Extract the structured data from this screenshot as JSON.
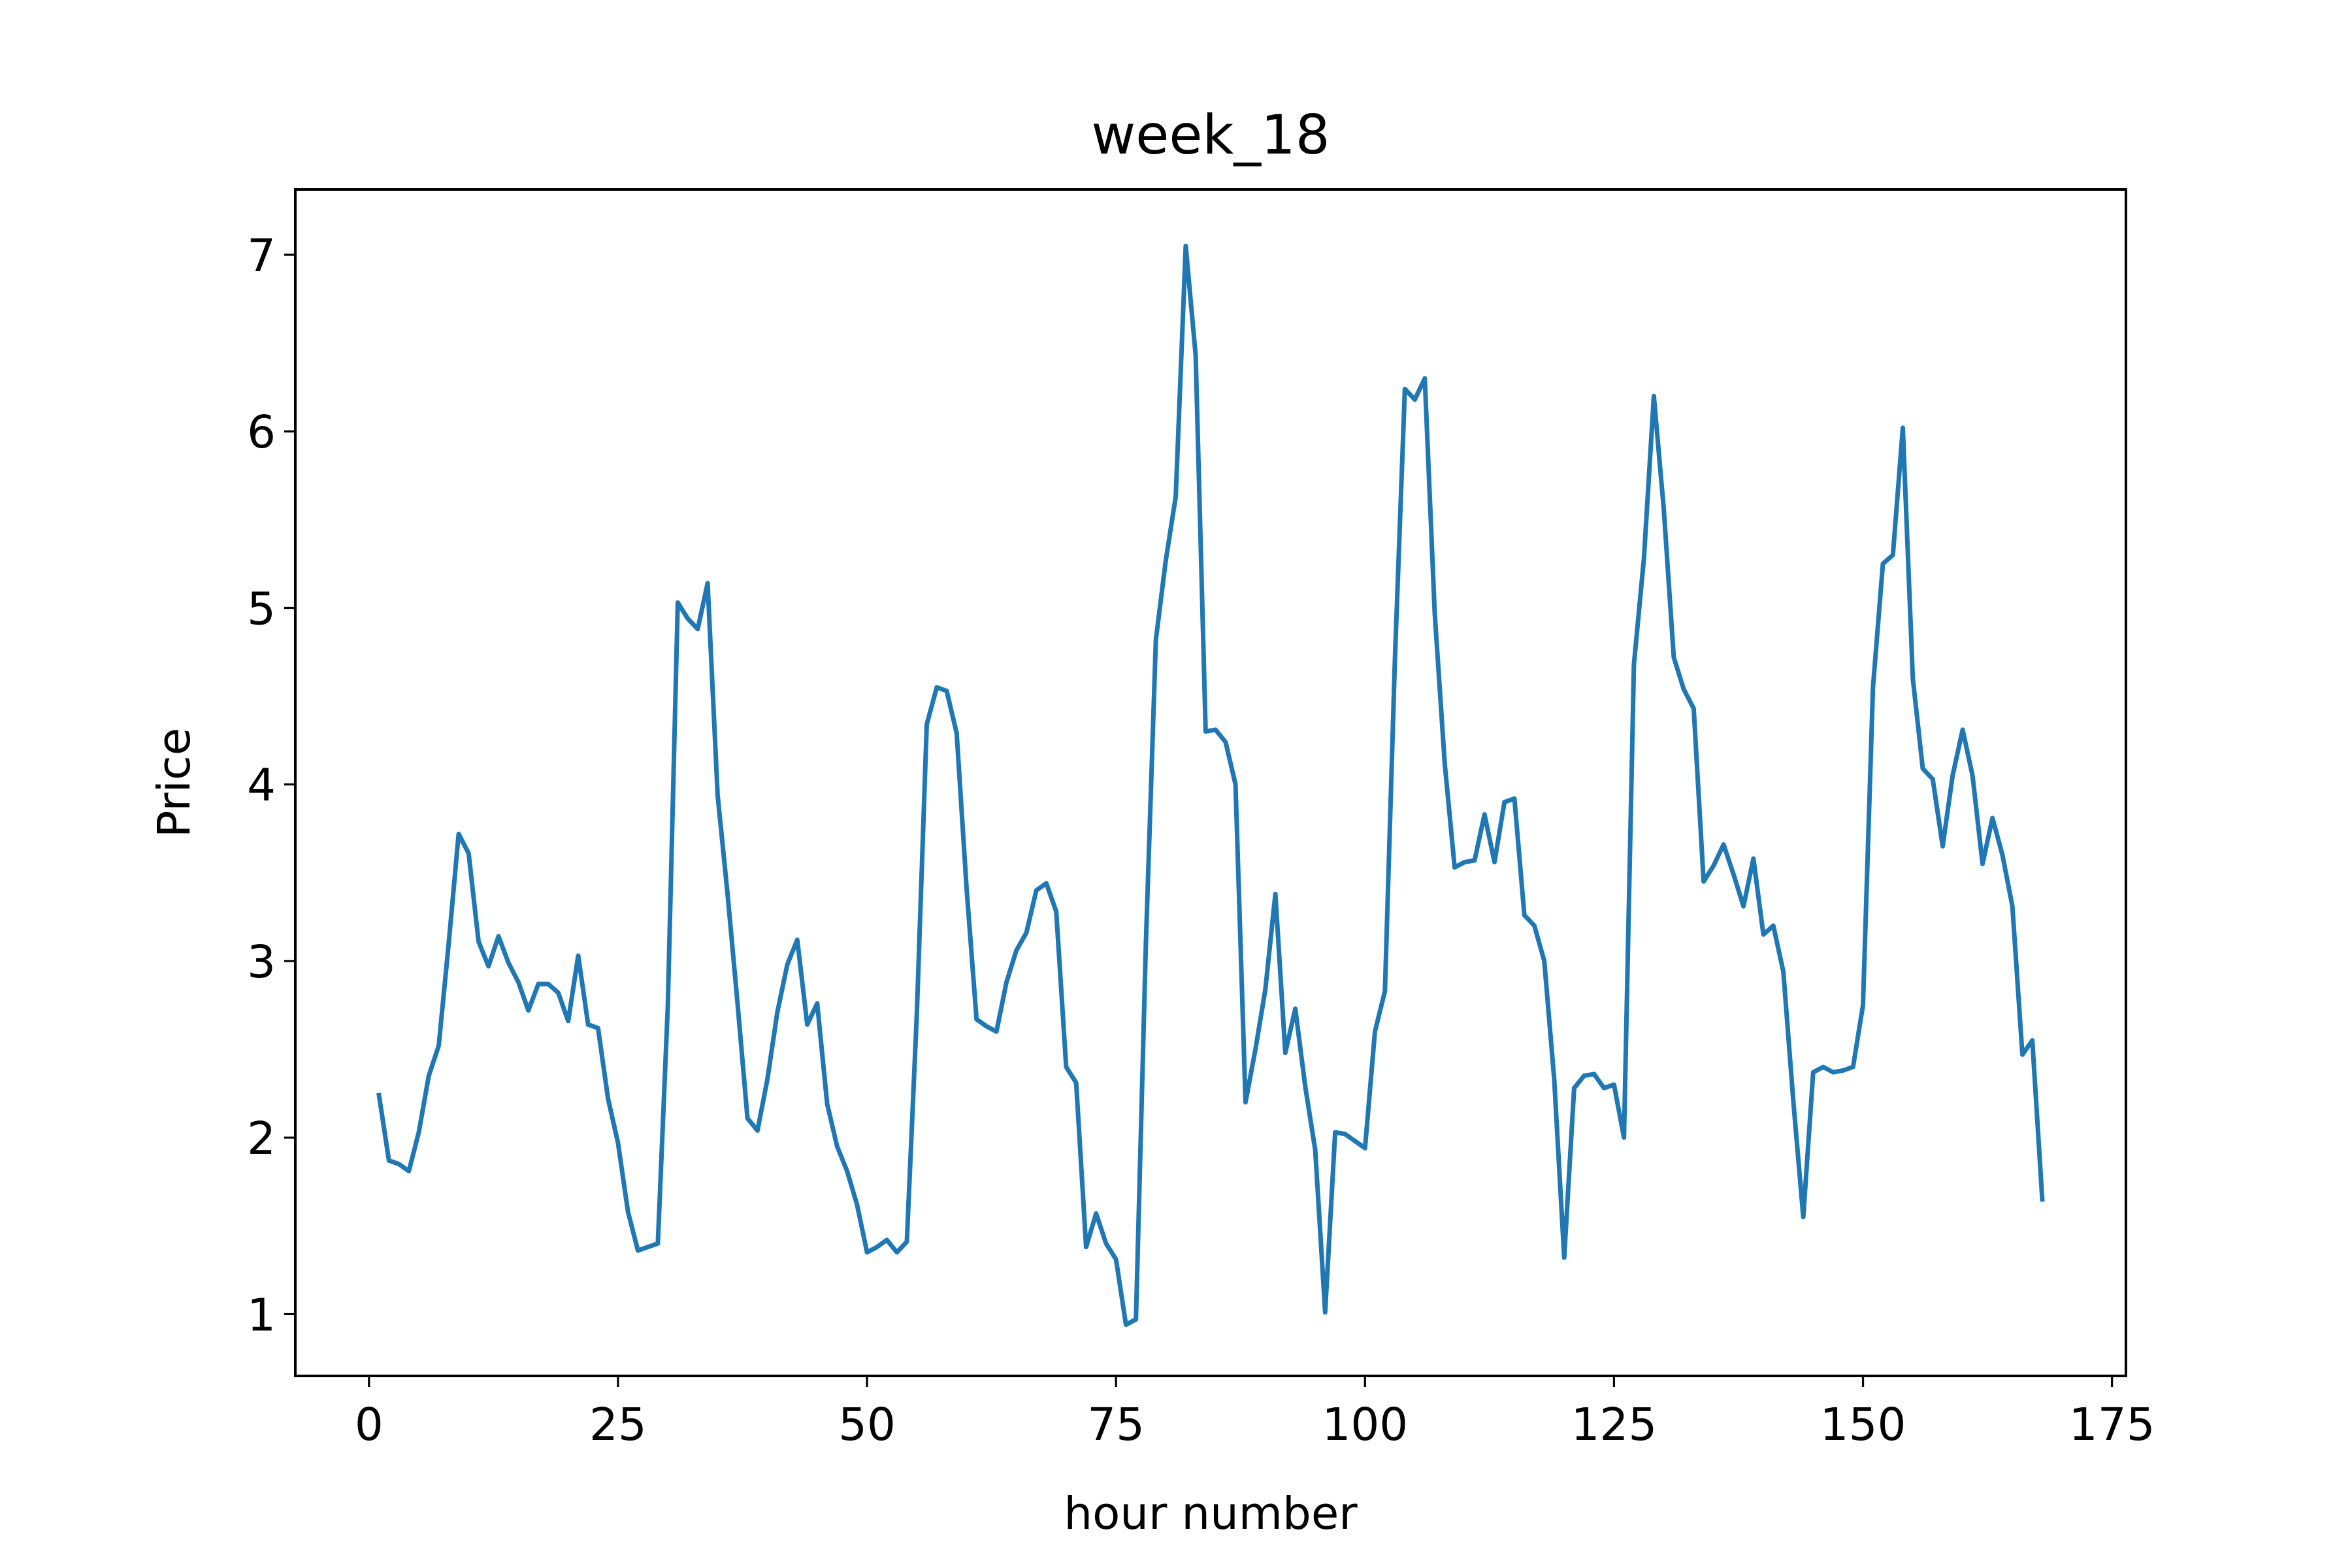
{
  "chart_data": {
    "type": "line",
    "title": "week_18",
    "xlabel": "hour number",
    "ylabel": "Price",
    "xlim": [
      -7.4,
      176.4
    ],
    "ylim": [
      0.65,
      7.37
    ],
    "xticks": [
      0,
      25,
      50,
      75,
      100,
      125,
      150,
      175
    ],
    "yticks": [
      1,
      2,
      3,
      4,
      5,
      6,
      7
    ],
    "grid": false,
    "legend": "none",
    "series": [
      {
        "color": "#1f77b4",
        "x": [
          1,
          2,
          3,
          4,
          5,
          6,
          7,
          8,
          9,
          10,
          11,
          12,
          13,
          14,
          15,
          16,
          17,
          18,
          19,
          20,
          21,
          22,
          23,
          24,
          25,
          26,
          27,
          28,
          29,
          30,
          31,
          32,
          33,
          34,
          35,
          36,
          37,
          38,
          39,
          40,
          41,
          42,
          43,
          44,
          45,
          46,
          47,
          48,
          49,
          50,
          51,
          52,
          53,
          54,
          55,
          56,
          57,
          58,
          59,
          60,
          61,
          62,
          63,
          64,
          65,
          66,
          67,
          68,
          69,
          70,
          71,
          72,
          73,
          74,
          75,
          76,
          77,
          78,
          79,
          80,
          81,
          82,
          83,
          84,
          85,
          86,
          87,
          88,
          89,
          90,
          91,
          92,
          93,
          94,
          95,
          96,
          97,
          98,
          99,
          100,
          101,
          102,
          103,
          104,
          105,
          106,
          107,
          108,
          109,
          110,
          111,
          112,
          113,
          114,
          115,
          116,
          117,
          118,
          119,
          120,
          121,
          122,
          123,
          124,
          125,
          126,
          127,
          128,
          129,
          130,
          131,
          132,
          133,
          134,
          135,
          136,
          137,
          138,
          139,
          140,
          141,
          142,
          143,
          144,
          145,
          146,
          147,
          148,
          149,
          150,
          151,
          152,
          153,
          154,
          155,
          156,
          157,
          158,
          159,
          160,
          161,
          162,
          163,
          164,
          165,
          166,
          167,
          168
        ],
        "y": [
          2.24,
          1.87,
          1.85,
          1.81,
          2.03,
          2.35,
          2.52,
          3.1,
          3.72,
          3.61,
          3.11,
          2.97,
          3.14,
          2.99,
          2.88,
          2.72,
          2.87,
          2.87,
          2.82,
          2.66,
          3.03,
          2.64,
          2.62,
          2.22,
          1.97,
          1.58,
          1.36,
          1.38,
          1.4,
          2.75,
          5.03,
          4.94,
          4.88,
          5.14,
          3.94,
          3.38,
          2.76,
          2.11,
          2.04,
          2.33,
          2.71,
          2.98,
          3.12,
          2.64,
          2.76,
          2.19,
          1.95,
          1.81,
          1.62,
          1.35,
          1.38,
          1.42,
          1.35,
          1.41,
          2.7,
          4.34,
          4.55,
          4.53,
          4.29,
          3.41,
          2.67,
          2.63,
          2.6,
          2.88,
          3.06,
          3.16,
          3.4,
          3.44,
          3.28,
          2.4,
          2.31,
          1.38,
          1.57,
          1.4,
          1.31,
          0.94,
          0.97,
          3.1,
          4.82,
          5.27,
          5.63,
          7.05,
          6.43,
          4.3,
          4.31,
          4.24,
          4.0,
          2.2,
          2.5,
          2.84,
          3.38,
          2.48,
          2.73,
          2.29,
          1.93,
          1.01,
          2.03,
          2.02,
          1.98,
          1.94,
          2.6,
          2.83,
          4.7,
          6.24,
          6.18,
          6.3,
          4.97,
          4.12,
          3.53,
          3.56,
          3.57,
          3.83,
          3.56,
          3.9,
          3.92,
          3.26,
          3.2,
          3.0,
          2.33,
          1.32,
          2.28,
          2.35,
          2.36,
          2.28,
          2.3,
          2.0,
          4.68,
          5.28,
          6.2,
          5.56,
          4.72,
          4.54,
          4.43,
          3.45,
          3.54,
          3.66,
          3.49,
          3.31,
          3.58,
          3.15,
          3.2,
          2.94,
          2.21,
          1.55,
          2.37,
          2.4,
          2.37,
          2.38,
          2.4,
          2.75,
          4.55,
          5.25,
          5.3,
          6.02,
          4.6,
          4.09,
          4.03,
          3.65,
          4.05,
          4.31,
          4.05,
          3.55,
          3.81,
          3.6,
          3.31,
          2.47,
          2.55,
          1.65
        ]
      }
    ]
  }
}
